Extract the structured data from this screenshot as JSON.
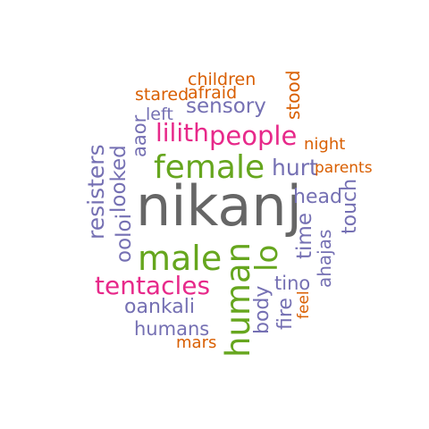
{
  "colors": {
    "gray": "#666666",
    "green": "#66a61e",
    "pink": "#e7298a",
    "purple": "#7570b3",
    "orange": "#d95f02"
  },
  "words": [
    {
      "text": "nikanj",
      "color": "gray"
    },
    {
      "text": "female",
      "color": "green"
    },
    {
      "text": "male",
      "color": "green"
    },
    {
      "text": "human",
      "color": "green"
    },
    {
      "text": "lo",
      "color": "green"
    },
    {
      "text": "people",
      "color": "pink"
    },
    {
      "text": "lilith",
      "color": "pink"
    },
    {
      "text": "tentacles",
      "color": "pink"
    },
    {
      "text": "sensory",
      "color": "purple"
    },
    {
      "text": "left",
      "color": "purple"
    },
    {
      "text": "hurt",
      "color": "purple"
    },
    {
      "text": "head",
      "color": "purple"
    },
    {
      "text": "time",
      "color": "purple"
    },
    {
      "text": "touch",
      "color": "purple"
    },
    {
      "text": "ahajas",
      "color": "purple"
    },
    {
      "text": "resisters",
      "color": "purple"
    },
    {
      "text": "looked",
      "color": "purple"
    },
    {
      "text": "ooloi",
      "color": "purple"
    },
    {
      "text": "aaor",
      "color": "purple"
    },
    {
      "text": "oankali",
      "color": "purple"
    },
    {
      "text": "humans",
      "color": "purple"
    },
    {
      "text": "body",
      "color": "purple"
    },
    {
      "text": "tino",
      "color": "purple"
    },
    {
      "text": "fire",
      "color": "purple"
    },
    {
      "text": "children",
      "color": "orange"
    },
    {
      "text": "stared",
      "color": "orange"
    },
    {
      "text": "afraid",
      "color": "orange"
    },
    {
      "text": "stood",
      "color": "orange"
    },
    {
      "text": "night",
      "color": "orange"
    },
    {
      "text": "parents",
      "color": "orange"
    },
    {
      "text": "feel",
      "color": "orange"
    },
    {
      "text": "mars",
      "color": "orange"
    }
  ]
}
